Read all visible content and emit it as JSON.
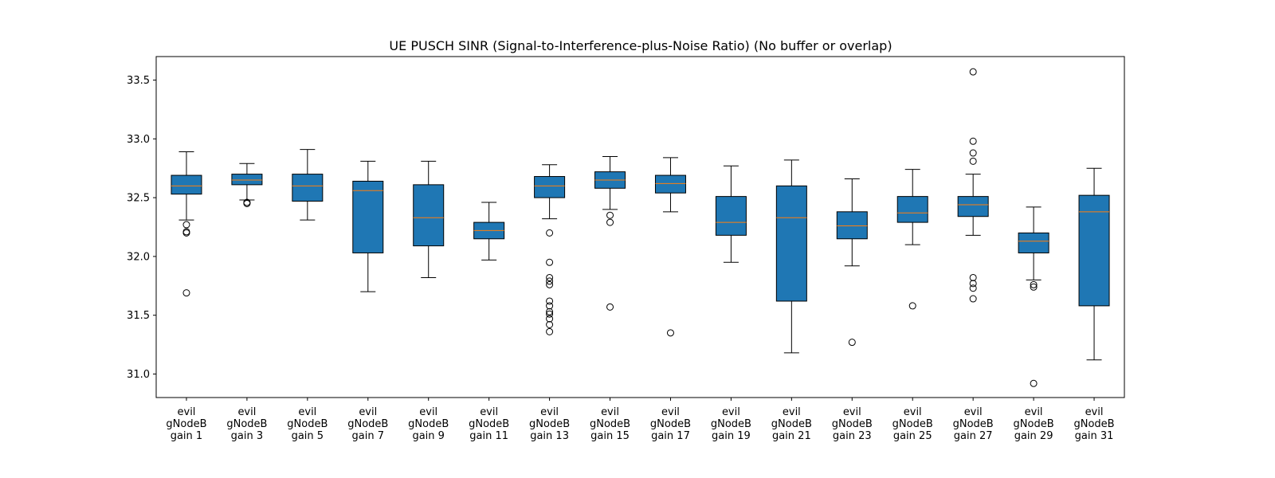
{
  "chart_data": {
    "type": "box",
    "title": "UE PUSCH SINR (Signal-to-Interference-plus-Noise Ratio) (No buffer or overlap)",
    "xlabel": "",
    "ylabel": "",
    "ylim": [
      30.8,
      33.7
    ],
    "yticks": [
      31.0,
      31.5,
      32.0,
      32.5,
      33.0,
      33.5
    ],
    "ytick_labels": [
      "31.0",
      "31.5",
      "32.0",
      "32.5",
      "33.0",
      "33.5"
    ],
    "grid": false,
    "box_color": "#1f77b4",
    "median_color": "#ff7f0e",
    "categories": [
      [
        "evil",
        "gNodeB",
        "gain 1"
      ],
      [
        "evil",
        "gNodeB",
        "gain 3"
      ],
      [
        "evil",
        "gNodeB",
        "gain 5"
      ],
      [
        "evil",
        "gNodeB",
        "gain 7"
      ],
      [
        "evil",
        "gNodeB",
        "gain 9"
      ],
      [
        "evil",
        "gNodeB",
        "gain 11"
      ],
      [
        "evil",
        "gNodeB",
        "gain 13"
      ],
      [
        "evil",
        "gNodeB",
        "gain 15"
      ],
      [
        "evil",
        "gNodeB",
        "gain 17"
      ],
      [
        "evil",
        "gNodeB",
        "gain 19"
      ],
      [
        "evil",
        "gNodeB",
        "gain 21"
      ],
      [
        "evil",
        "gNodeB",
        "gain 23"
      ],
      [
        "evil",
        "gNodeB",
        "gain 25"
      ],
      [
        "evil",
        "gNodeB",
        "gain 27"
      ],
      [
        "evil",
        "gNodeB",
        "gain 29"
      ],
      [
        "evil",
        "gNodeB",
        "gain 31"
      ]
    ],
    "boxes": [
      {
        "whislo": 32.31,
        "q1": 32.53,
        "med": 32.6,
        "q3": 32.69,
        "whishi": 32.89,
        "fliers": [
          32.27,
          32.21,
          32.2,
          31.69
        ]
      },
      {
        "whislo": 32.48,
        "q1": 32.61,
        "med": 32.65,
        "q3": 32.7,
        "whishi": 32.79,
        "fliers": [
          32.46,
          32.45
        ]
      },
      {
        "whislo": 32.31,
        "q1": 32.47,
        "med": 32.6,
        "q3": 32.7,
        "whishi": 32.91,
        "fliers": []
      },
      {
        "whislo": 31.7,
        "q1": 32.03,
        "med": 32.56,
        "q3": 32.64,
        "whishi": 32.81,
        "fliers": []
      },
      {
        "whislo": 31.82,
        "q1": 32.09,
        "med": 32.33,
        "q3": 32.61,
        "whishi": 32.81,
        "fliers": []
      },
      {
        "whislo": 31.97,
        "q1": 32.15,
        "med": 32.22,
        "q3": 32.29,
        "whishi": 32.46,
        "fliers": []
      },
      {
        "whislo": 32.32,
        "q1": 32.5,
        "med": 32.6,
        "q3": 32.68,
        "whishi": 32.78,
        "fliers": [
          32.2,
          31.95,
          31.82,
          31.79,
          31.76,
          31.62,
          31.58,
          31.53,
          31.51,
          31.47,
          31.42,
          31.36
        ]
      },
      {
        "whislo": 32.4,
        "q1": 32.58,
        "med": 32.65,
        "q3": 32.72,
        "whishi": 32.85,
        "fliers": [
          32.35,
          32.29,
          31.57
        ]
      },
      {
        "whislo": 32.38,
        "q1": 32.54,
        "med": 32.62,
        "q3": 32.69,
        "whishi": 32.84,
        "fliers": [
          31.35
        ]
      },
      {
        "whislo": 31.95,
        "q1": 32.18,
        "med": 32.29,
        "q3": 32.51,
        "whishi": 32.77,
        "fliers": []
      },
      {
        "whislo": 31.18,
        "q1": 31.62,
        "med": 32.33,
        "q3": 32.6,
        "whishi": 32.82,
        "fliers": []
      },
      {
        "whislo": 31.92,
        "q1": 32.15,
        "med": 32.26,
        "q3": 32.38,
        "whishi": 32.66,
        "fliers": [
          31.27
        ]
      },
      {
        "whislo": 32.1,
        "q1": 32.29,
        "med": 32.37,
        "q3": 32.51,
        "whishi": 32.74,
        "fliers": [
          31.58
        ]
      },
      {
        "whislo": 32.18,
        "q1": 32.34,
        "med": 32.44,
        "q3": 32.51,
        "whishi": 32.7,
        "fliers": [
          33.57,
          32.98,
          32.88,
          32.81,
          31.82,
          31.77,
          31.73,
          31.64
        ]
      },
      {
        "whislo": 31.8,
        "q1": 32.03,
        "med": 32.13,
        "q3": 32.2,
        "whishi": 32.42,
        "fliers": [
          31.76,
          31.74,
          30.92
        ]
      },
      {
        "whislo": 31.12,
        "q1": 31.58,
        "med": 32.38,
        "q3": 32.52,
        "whishi": 32.75,
        "fliers": []
      }
    ]
  }
}
